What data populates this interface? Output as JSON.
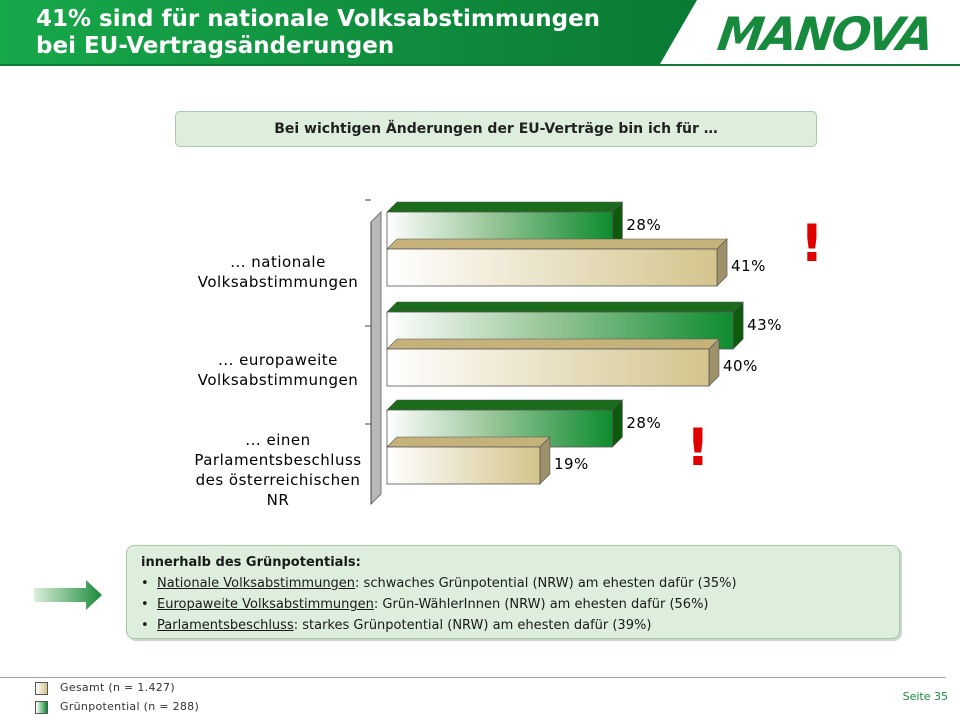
{
  "header": {
    "title_line1": "41% sind für nationale Volksabstimmungen",
    "title_line2": "bei EU-Vertragsänderungen",
    "logo_text": "MANOVA",
    "colors": {
      "header_green": "#0f8a3c",
      "logo_green": "#178a3e"
    }
  },
  "question": "Bei wichtigen Änderungen der EU-Verträge bin ich für …",
  "chart_data": {
    "type": "bar",
    "orientation": "horizontal",
    "categories": [
      [
        "... nationale",
        "Volksabstimmungen"
      ],
      [
        "... europaweite",
        "Volksabstimmungen"
      ],
      [
        "... einen",
        "Parlamentsbeschluss",
        "des österreichischen",
        "NR"
      ]
    ],
    "series": [
      {
        "name": "Grünpotential (n = 288)",
        "values": [
          28,
          43,
          28
        ],
        "labels": [
          "28%",
          "43%",
          "28%"
        ],
        "color": "#0e8c2e"
      },
      {
        "name": "Gesamt (n = 1.427)",
        "values": [
          41,
          40,
          19
        ],
        "labels": [
          "41%",
          "40%",
          "19%"
        ],
        "color": "#d4c48c"
      }
    ],
    "xlim": [
      0,
      60
    ],
    "grid": false,
    "legend_position": "bottom-left",
    "annotations": [
      "!",
      "!"
    ]
  },
  "info": {
    "title": "innerhalb des Grünpotentials:",
    "items": [
      {
        "key": "Nationale Volksabstimmungen",
        "text": ": schwaches Grünpotential (NRW) am ehesten dafür (35%)"
      },
      {
        "key": "Europaweite Volksabstimmungen",
        "text": ": Grün-WählerInnen (NRW) am ehesten dafür (56%)"
      },
      {
        "key": "Parlamentsbeschluss",
        "text": ": starkes Grünpotential (NRW) am ehesten dafür (39%)"
      }
    ]
  },
  "legend": {
    "gesamt": "Gesamt (n = 1.427)",
    "gruen": "Grünpotential  (n = 288)"
  },
  "page_number": "Seite 35"
}
